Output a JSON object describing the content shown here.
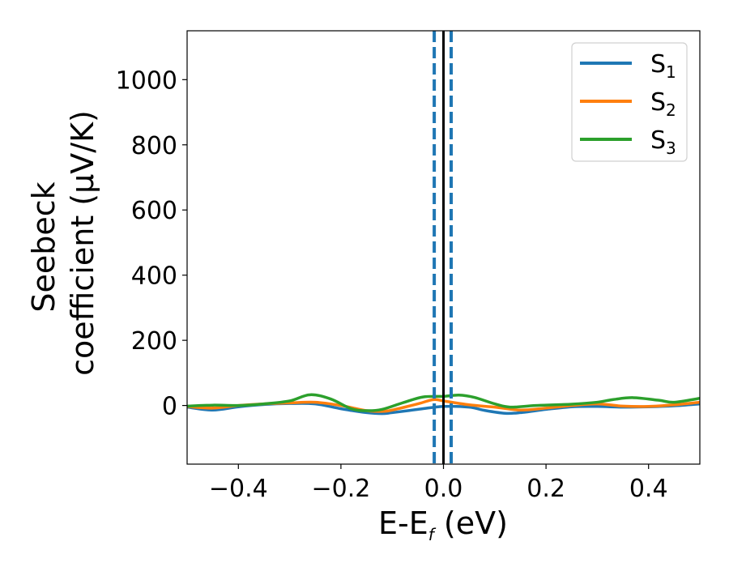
{
  "chart_data": {
    "type": "line",
    "xlabel_main": "E-E",
    "xlabel_sub": "f",
    "xlabel_unit": " (eV)",
    "ylabel_line1": "Seebeck",
    "ylabel_line2": "coefficient  (μV/K)",
    "xlim": [
      -0.5,
      0.5
    ],
    "ylim": [
      -180,
      1150
    ],
    "x_ticks": [
      -0.4,
      -0.2,
      0.0,
      0.2,
      0.4
    ],
    "x_tick_labels": [
      "−0.4",
      "−0.2",
      "0.0",
      "0.2",
      "0.4"
    ],
    "y_ticks": [
      0,
      200,
      400,
      600,
      800,
      1000
    ],
    "y_tick_labels": [
      "0",
      "200",
      "400",
      "600",
      "800",
      "1000"
    ],
    "grid": false,
    "legend_position": "top-right",
    "vlines": [
      {
        "x": -0.018,
        "style": "dashed",
        "color": "#1f77b4"
      },
      {
        "x": 0.015,
        "style": "dashed",
        "color": "#1f77b4"
      },
      {
        "x": 0.0,
        "style": "solid",
        "color": "#000000"
      }
    ],
    "series": [
      {
        "name_base": "S",
        "name_sub": "1",
        "color": "#1f77b4",
        "x": [
          -0.5,
          -0.45,
          -0.4,
          -0.35,
          -0.3,
          -0.25,
          -0.2,
          -0.15,
          -0.12,
          -0.1,
          -0.05,
          0.0,
          0.05,
          0.08,
          0.12,
          0.15,
          0.2,
          0.25,
          0.3,
          0.35,
          0.4,
          0.45,
          0.5
        ],
        "values": [
          -5,
          -14,
          -4,
          3,
          6,
          5,
          -10,
          -22,
          -25,
          -22,
          -12,
          -3,
          -5,
          -15,
          -24,
          -22,
          -12,
          -4,
          -3,
          -5,
          -4,
          -1,
          5
        ]
      },
      {
        "name_base": "S",
        "name_sub": "2",
        "color": "#ff7f0e",
        "x": [
          -0.5,
          -0.45,
          -0.4,
          -0.35,
          -0.3,
          -0.25,
          -0.2,
          -0.15,
          -0.12,
          -0.1,
          -0.05,
          -0.02,
          0.0,
          0.05,
          0.1,
          0.15,
          0.2,
          0.25,
          0.3,
          0.35,
          0.4,
          0.45,
          0.5
        ],
        "values": [
          -3,
          -8,
          0,
          5,
          8,
          10,
          0,
          -16,
          -18,
          -14,
          5,
          18,
          14,
          2,
          -5,
          -14,
          -8,
          0,
          5,
          -2,
          -3,
          2,
          10
        ]
      },
      {
        "name_base": "S",
        "name_sub": "3",
        "color": "#2ca02c",
        "x": [
          -0.5,
          -0.45,
          -0.4,
          -0.35,
          -0.3,
          -0.26,
          -0.22,
          -0.18,
          -0.15,
          -0.12,
          -0.08,
          -0.04,
          0.0,
          0.03,
          0.06,
          0.1,
          0.13,
          0.18,
          0.25,
          0.3,
          0.33,
          0.37,
          0.42,
          0.45,
          0.5
        ],
        "values": [
          -2,
          1,
          0,
          5,
          14,
          33,
          20,
          -10,
          -16,
          -12,
          8,
          26,
          28,
          32,
          25,
          5,
          -5,
          0,
          4,
          10,
          18,
          24,
          16,
          10,
          22
        ]
      }
    ]
  }
}
